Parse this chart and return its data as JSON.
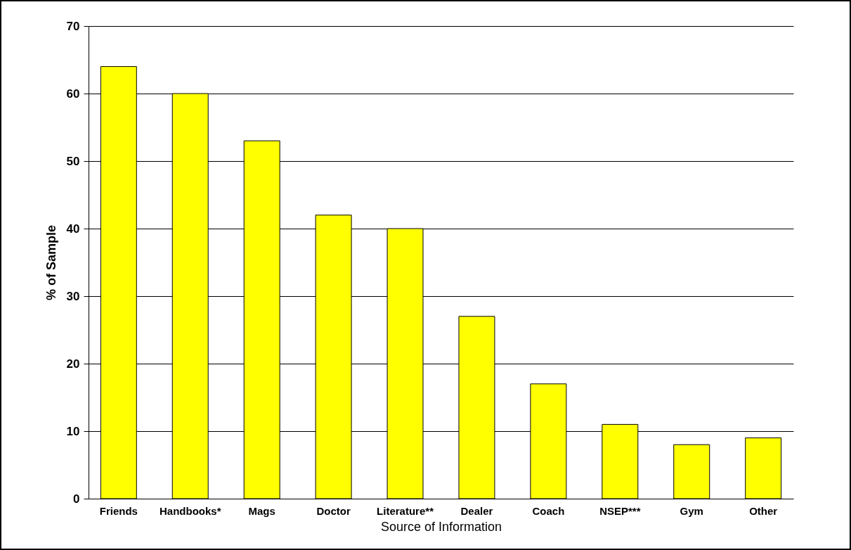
{
  "chart_data": {
    "type": "bar",
    "xlabel": "Source of Information",
    "ylabel": "% of Sample",
    "categories": [
      "Friends",
      "Handbooks*",
      "Mags",
      "Doctor",
      "Literature**",
      "Dealer",
      "Coach",
      "NSEP***",
      "Gym",
      "Other"
    ],
    "values": [
      64,
      60,
      53,
      42,
      40,
      27,
      17,
      11,
      8,
      9
    ],
    "color": "#ffff00",
    "ylim": [
      0,
      70
    ],
    "yticks": [
      0,
      10,
      20,
      30,
      40,
      50,
      60,
      70
    ],
    "grid": "y"
  }
}
